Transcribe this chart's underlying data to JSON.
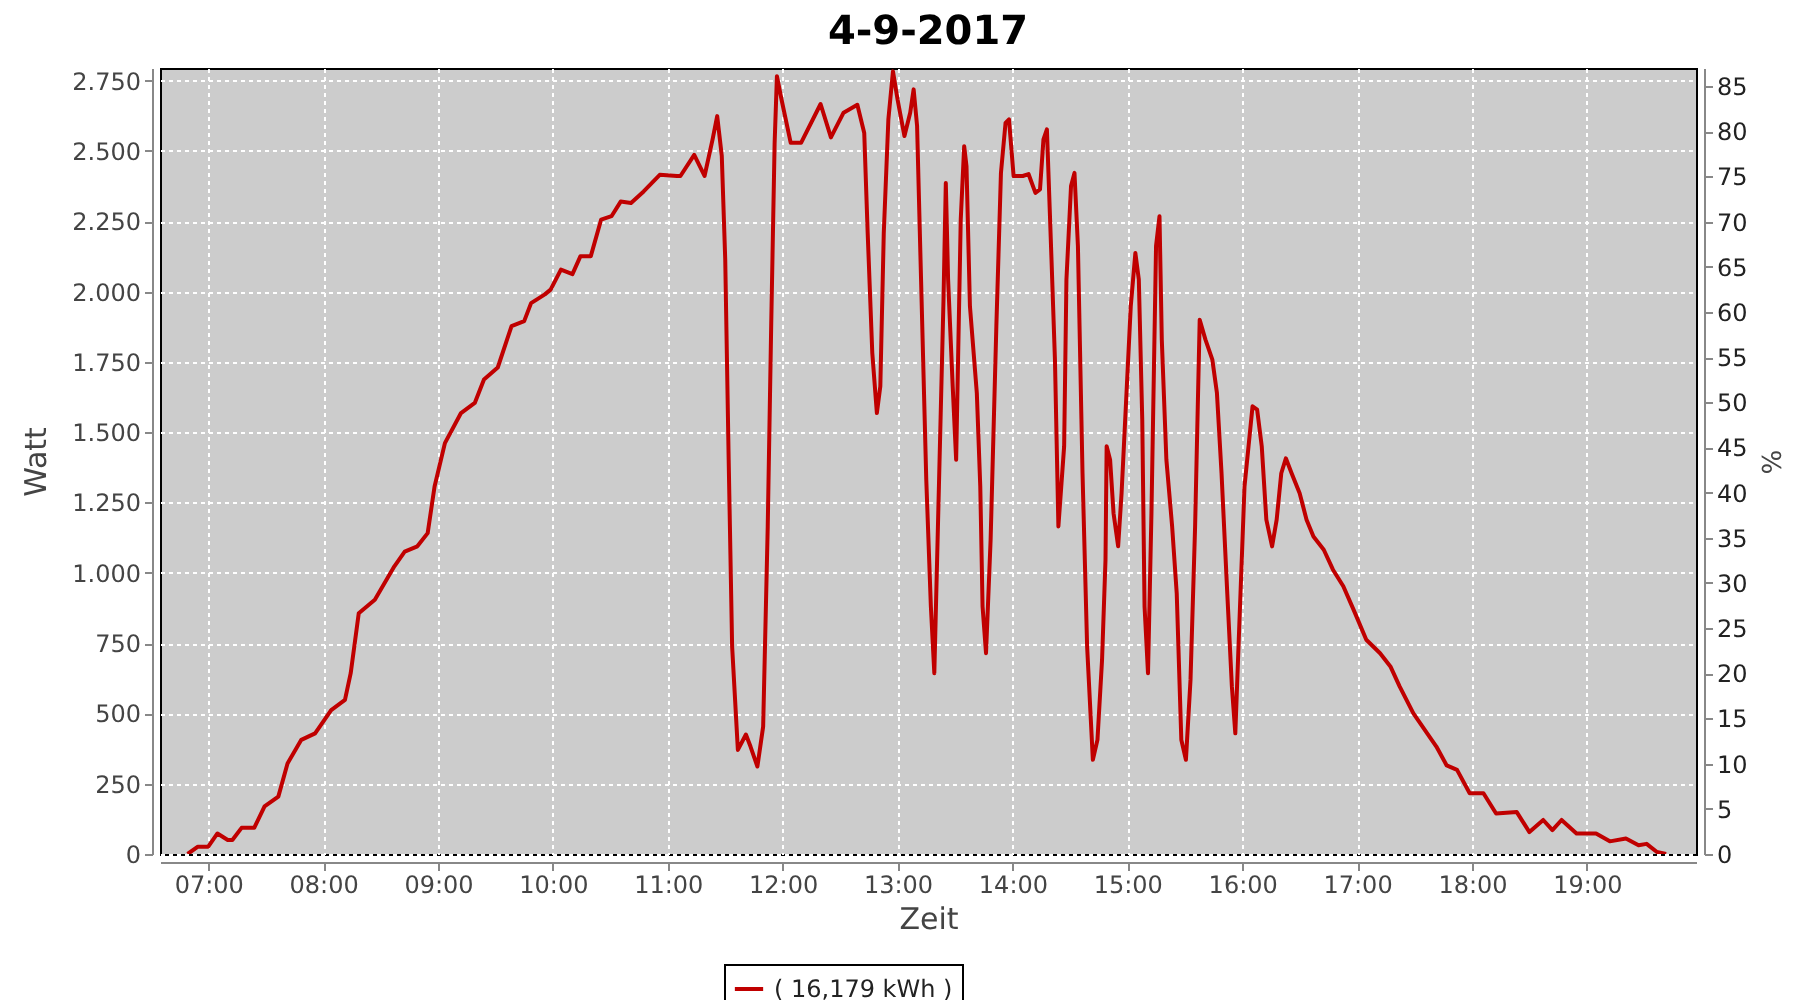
{
  "chart_data": {
    "type": "line",
    "title": "4-9-2017",
    "xlabel": "Zeit",
    "ylabel": "Watt",
    "y2label": "%",
    "xlim": [
      6.58,
      19.95
    ],
    "ylim": [
      0,
      2795
    ],
    "y2lim": [
      0,
      87
    ],
    "xticks": [
      {
        "value": 7,
        "label": "07:00"
      },
      {
        "value": 8,
        "label": "08:00"
      },
      {
        "value": 9,
        "label": "09:00"
      },
      {
        "value": 10,
        "label": "10:00"
      },
      {
        "value": 11,
        "label": "11:00"
      },
      {
        "value": 12,
        "label": "12:00"
      },
      {
        "value": 13,
        "label": "13:00"
      },
      {
        "value": 14,
        "label": "14:00"
      },
      {
        "value": 15,
        "label": "15:00"
      },
      {
        "value": 16,
        "label": "16:00"
      },
      {
        "value": 17,
        "label": "17:00"
      },
      {
        "value": 18,
        "label": "18:00"
      },
      {
        "value": 19,
        "label": "19:00"
      }
    ],
    "yticks": [
      0,
      250,
      500,
      750,
      {
        "value": 1000,
        "label": "1.000"
      },
      {
        "value": 1250,
        "label": "1.250"
      },
      {
        "value": 1500,
        "label": "1.500"
      },
      {
        "value": 1750,
        "label": "1.750"
      },
      {
        "value": 2000,
        "label": "2.000"
      },
      {
        "value": 2250,
        "label": "2.250"
      },
      {
        "value": 2500,
        "label": "2.500"
      },
      {
        "value": 2750,
        "label": "2.750"
      }
    ],
    "y2ticks": [
      0,
      5,
      10,
      15,
      20,
      25,
      30,
      35,
      40,
      45,
      50,
      55,
      60,
      65,
      70,
      75,
      80,
      85
    ],
    "grid": true,
    "legend": "bottom",
    "line_style": "solid",
    "series": [
      {
        "name": "( 16,179 kWh )",
        "color": "#c00000",
        "x": [
          6.82,
          6.91,
          7.0,
          7.08,
          7.17,
          7.21,
          7.29,
          7.4,
          7.49,
          7.61,
          7.69,
          7.81,
          7.93,
          8.07,
          8.19,
          8.24,
          8.31,
          8.45,
          8.62,
          8.71,
          8.82,
          8.91,
          8.97,
          9.06,
          9.2,
          9.32,
          9.4,
          9.52,
          9.64,
          9.75,
          9.81,
          9.93,
          9.98,
          10.07,
          10.17,
          10.24,
          10.33,
          10.42,
          10.51,
          10.59,
          10.68,
          10.79,
          10.93,
          11.08,
          11.11,
          11.23,
          11.32,
          11.39,
          11.43,
          11.47,
          11.5,
          11.53,
          11.56,
          11.61,
          11.68,
          11.72,
          11.78,
          11.83,
          11.87,
          11.9,
          11.93,
          11.95,
          11.99,
          12.07,
          12.16,
          12.33,
          12.42,
          12.53,
          12.65,
          12.71,
          12.74,
          12.78,
          12.82,
          12.85,
          12.88,
          12.92,
          12.96,
          13.0,
          13.06,
          13.11,
          13.14,
          13.17,
          13.2,
          13.25,
          13.29,
          13.32,
          13.36,
          13.4,
          13.42,
          13.44,
          13.48,
          13.51,
          13.55,
          13.58,
          13.6,
          13.63,
          13.69,
          13.72,
          13.74,
          13.77,
          13.81,
          13.86,
          13.9,
          13.94,
          13.97,
          14.01,
          14.09,
          14.14,
          14.2,
          14.24,
          14.27,
          14.3,
          14.34,
          14.37,
          14.4,
          14.45,
          14.47,
          14.51,
          14.54,
          14.57,
          14.61,
          14.65,
          14.7,
          14.74,
          14.78,
          14.81,
          14.82,
          14.85,
          14.88,
          14.92,
          14.95,
          14.99,
          15.03,
          15.07,
          15.1,
          15.13,
          15.15,
          15.18,
          15.21,
          15.25,
          15.28,
          15.3,
          15.34,
          15.39,
          15.43,
          15.47,
          15.51,
          15.55,
          15.59,
          15.63,
          15.68,
          15.74,
          15.78,
          15.82,
          15.87,
          15.91,
          15.94,
          15.97,
          16.02,
          16.09,
          16.13,
          16.17,
          16.21,
          16.26,
          16.3,
          16.34,
          16.38,
          16.43,
          16.5,
          16.56,
          16.62,
          16.71,
          16.79,
          16.88,
          16.97,
          17.08,
          17.2,
          17.29,
          17.37,
          17.49,
          17.61,
          17.69,
          17.78,
          17.87,
          17.98,
          18.1,
          18.21,
          18.39,
          18.5,
          18.62,
          18.7,
          18.78,
          18.91,
          19.08,
          19.2,
          19.34,
          19.45,
          19.52,
          19.61,
          19.69
        ],
        "values": [
          0,
          26,
          26,
          73,
          50,
          50,
          93,
          93,
          169,
          204,
          322,
          406,
          429,
          512,
          548,
          643,
          856,
          904,
          1023,
          1075,
          1094,
          1141,
          1307,
          1461,
          1568,
          1604,
          1687,
          1730,
          1877,
          1895,
          1959,
          1990,
          2007,
          2078,
          2062,
          2126,
          2126,
          2256,
          2268,
          2320,
          2315,
          2356,
          2415,
          2411,
          2411,
          2486,
          2411,
          2541,
          2624,
          2482,
          2114,
          1402,
          738,
          370,
          425,
          382,
          311,
          453,
          1165,
          1877,
          2529,
          2766,
          2683,
          2529,
          2529,
          2667,
          2548,
          2636,
          2664,
          2564,
          2208,
          1782,
          1568,
          1663,
          2208,
          2612,
          2783,
          2683,
          2553,
          2636,
          2719,
          2589,
          2114,
          1331,
          880,
          643,
          1307,
          1972,
          2386,
          2043,
          1663,
          1402,
          2256,
          2517,
          2446,
          1948,
          1639,
          1307,
          880,
          714,
          1117,
          1877,
          2422,
          2600,
          2612,
          2411,
          2411,
          2418,
          2351,
          2363,
          2541,
          2577,
          2114,
          1758,
          1165,
          1450,
          2043,
          2375,
          2422,
          2162,
          1354,
          738,
          335,
          406,
          690,
          1046,
          1450,
          1402,
          1212,
          1094,
          1283,
          1616,
          1948,
          2137,
          2043,
          1544,
          880,
          643,
          1212,
          2162,
          2268,
          1829,
          1402,
          1165,
          927,
          406,
          335,
          619,
          1165,
          1900,
          1829,
          1758,
          1639,
          1354,
          927,
          596,
          429,
          762,
          1307,
          1592,
          1580,
          1450,
          1189,
          1094,
          1189,
          1354,
          1407,
          1354,
          1283,
          1189,
          1129,
          1082,
          1011,
          952,
          868,
          762,
          714,
          667,
          596,
          500,
          429,
          382,
          315,
          299,
          216,
          216,
          144,
          149,
          78,
          121,
          85,
          121,
          73,
          73,
          45,
          55,
          31,
          36,
          7,
          0
        ]
      }
    ]
  }
}
